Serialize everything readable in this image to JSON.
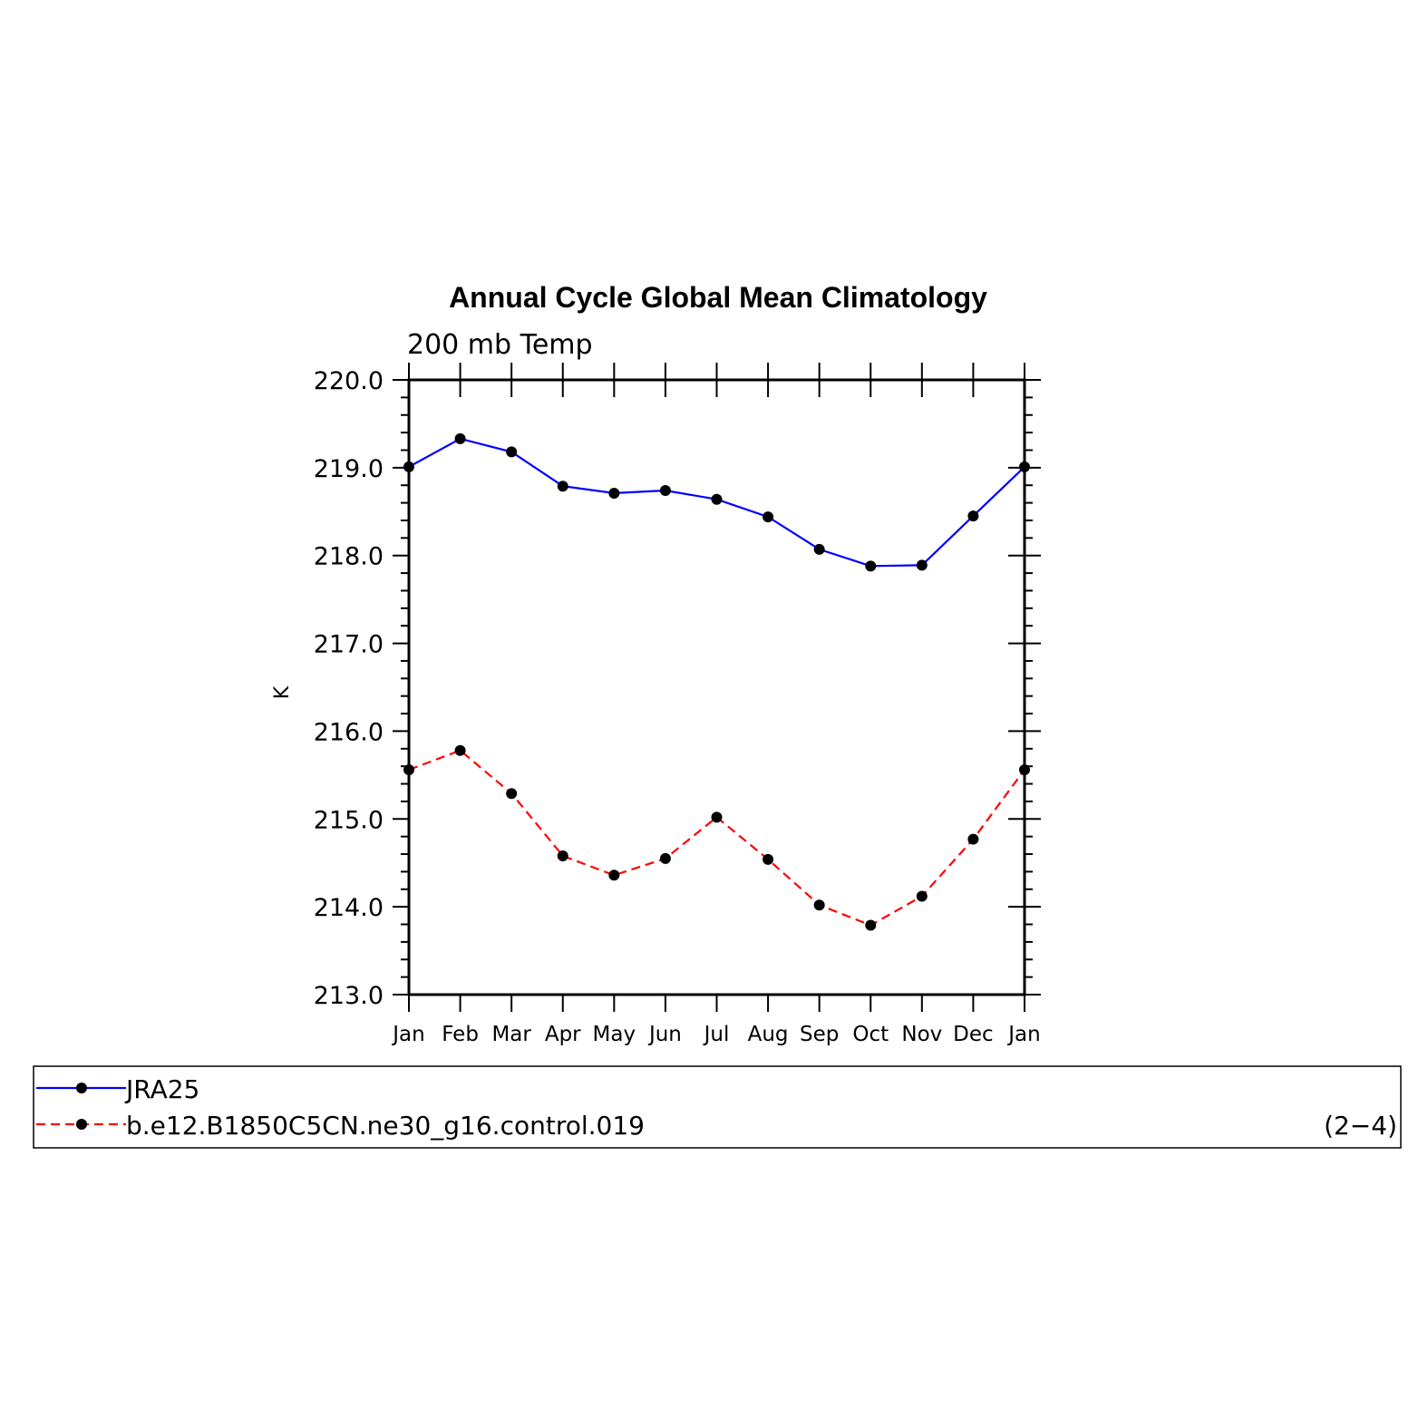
{
  "chart_data": {
    "type": "line",
    "title": "Annual Cycle Global Mean Climatology",
    "subtitle": "200 mb Temp",
    "ylabel": "K",
    "xlabel": "",
    "categories": [
      "Jan",
      "Feb",
      "Mar",
      "Apr",
      "May",
      "Jun",
      "Jul",
      "Aug",
      "Sep",
      "Oct",
      "Nov",
      "Dec",
      "Jan"
    ],
    "ylim": [
      213.0,
      220.0
    ],
    "yticks": [
      "213.0",
      "214.0",
      "215.0",
      "216.0",
      "217.0",
      "218.0",
      "219.0",
      "220.0"
    ],
    "grid": false,
    "legend_position": "bottom",
    "series": [
      {
        "name": "JRA25",
        "color": "#0000ff",
        "dash": "solid",
        "values": [
          219.01,
          219.33,
          219.18,
          218.79,
          218.71,
          218.74,
          218.64,
          218.44,
          218.07,
          217.88,
          217.89,
          218.45,
          219.01
        ]
      },
      {
        "name": "b.e12.B1850C5CN.ne30_g16.control.019",
        "color": "#ff0000",
        "dash": "dashed",
        "values": [
          215.56,
          215.78,
          215.29,
          214.58,
          214.36,
          214.55,
          215.02,
          214.54,
          214.02,
          213.79,
          214.12,
          214.77,
          215.56
        ]
      }
    ],
    "panel_id": "(2−4)"
  }
}
